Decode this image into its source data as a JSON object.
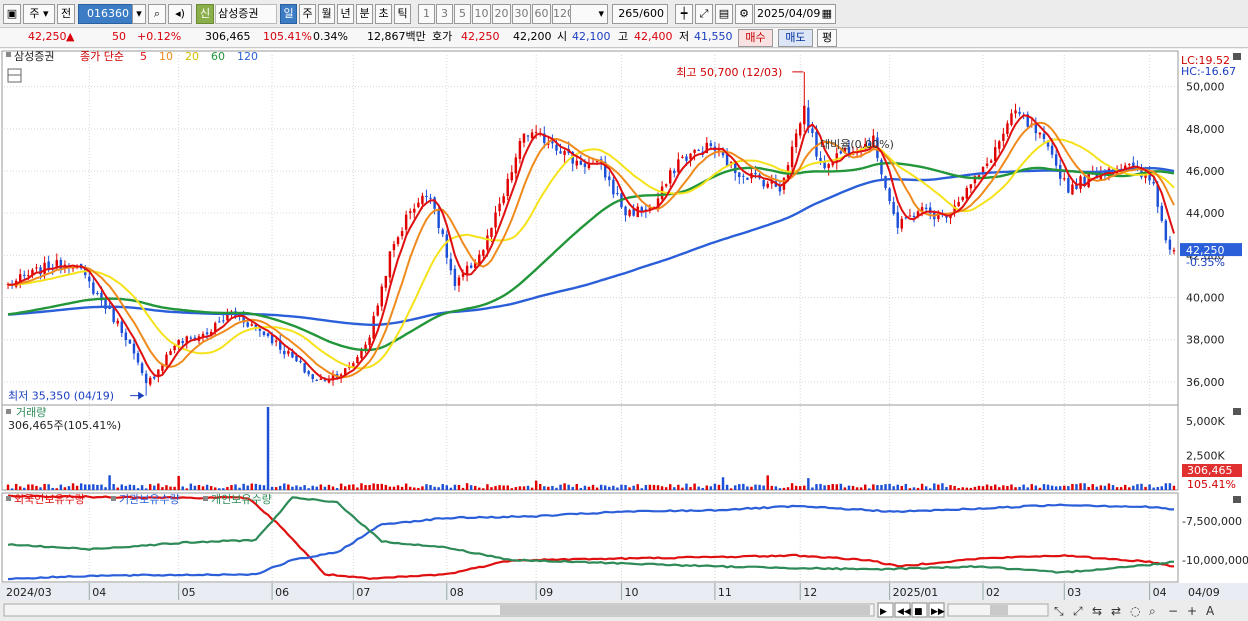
{
  "toolbar": {
    "type_label": "주",
    "jeon_label": "전",
    "stock_code": "016360",
    "sin_label": "신",
    "stock_name": "삼성증권",
    "periods": [
      "일",
      "주",
      "월",
      "년",
      "분",
      "초",
      "틱"
    ],
    "numbers": [
      "1",
      "3",
      "5",
      "10",
      "20",
      "30",
      "60",
      "120"
    ],
    "count_value": "265",
    "count_total": "/600",
    "date_value": "2025/04/09"
  },
  "quote": {
    "price": "42,250",
    "change": "50",
    "change_pct": "+0.12%",
    "volume": "306,465",
    "volume_ratio": "105.41%",
    "turnover": "0.34%",
    "amount": "12,867백만",
    "hoga_label": "호가",
    "hoga_ask": "42,250",
    "hoga_bid": "42,200",
    "open_label": "시",
    "open": "42,100",
    "high_label": "고",
    "high": "42,400",
    "low_label": "저",
    "low": "41,550",
    "buy_label": "매수",
    "sell_label": "매도",
    "avg_label": "평"
  },
  "colors": {
    "up": "#e00000",
    "down": "#1c4fd8",
    "ma5": "#e01010",
    "ma10": "#f08a1c",
    "ma20": "#f6e21a",
    "ma60": "#23963a",
    "ma120": "#2b5fd9",
    "foreign": "#e01010",
    "institution": "#2b5fd9",
    "individual": "#2e8a57"
  },
  "chart_data": [
    {
      "type": "candlestick",
      "title": "삼성증권",
      "legend": {
        "prefix": "종가 단순",
        "items": [
          {
            "label": "5",
            "color": "#e01010"
          },
          {
            "label": "10",
            "color": "#f08a1c"
          },
          {
            "label": "20",
            "color": "#f6e21a"
          },
          {
            "label": "60",
            "color": "#23963a"
          },
          {
            "label": "120",
            "color": "#2b5fd9"
          }
        ]
      },
      "y_ticks": [
        "36,000",
        "38,000",
        "40,000",
        "42,000",
        "44,000",
        "46,000",
        "48,000",
        "50,000"
      ],
      "y_range": [
        35000,
        51500
      ],
      "x_labels": [
        "2024/03",
        "04",
        "05",
        "06",
        "07",
        "08",
        "09",
        "10",
        "11",
        "12",
        "2025/01",
        "02",
        "03",
        "04",
        "04/09"
      ],
      "anchors": [
        {
          "date": "2024-03-04",
          "price": 40600
        },
        {
          "date": "2024-03-15",
          "price": 41400
        },
        {
          "date": "2024-03-26",
          "price": 41700
        },
        {
          "date": "2024-04-05",
          "price": 39600
        },
        {
          "date": "2024-04-12",
          "price": 38200
        },
        {
          "date": "2024-04-19",
          "price": 35800
        },
        {
          "date": "2024-04-30",
          "price": 37800
        },
        {
          "date": "2024-05-10",
          "price": 38300
        },
        {
          "date": "2024-05-20",
          "price": 39300
        },
        {
          "date": "2024-05-31",
          "price": 38200
        },
        {
          "date": "2024-06-07",
          "price": 37300
        },
        {
          "date": "2024-06-18",
          "price": 36000
        },
        {
          "date": "2024-06-28",
          "price": 36600
        },
        {
          "date": "2024-07-05",
          "price": 38200
        },
        {
          "date": "2024-07-12",
          "price": 42000
        },
        {
          "date": "2024-07-19",
          "price": 44200
        },
        {
          "date": "2024-07-26",
          "price": 45000
        },
        {
          "date": "2024-08-05",
          "price": 40500
        },
        {
          "date": "2024-08-14",
          "price": 42300
        },
        {
          "date": "2024-08-21",
          "price": 44800
        },
        {
          "date": "2024-08-28",
          "price": 47800
        },
        {
          "date": "2024-09-06",
          "price": 47400
        },
        {
          "date": "2024-09-13",
          "price": 46500
        },
        {
          "date": "2024-09-24",
          "price": 46200
        },
        {
          "date": "2024-10-02",
          "price": 44000
        },
        {
          "date": "2024-10-11",
          "price": 44300
        },
        {
          "date": "2024-10-21",
          "price": 46500
        },
        {
          "date": "2024-10-31",
          "price": 47200
        },
        {
          "date": "2024-11-08",
          "price": 46000
        },
        {
          "date": "2024-11-15",
          "price": 45700
        },
        {
          "date": "2024-11-25",
          "price": 45200
        },
        {
          "date": "2024-12-03",
          "price": 49000
        },
        {
          "date": "2024-12-09",
          "price": 46200
        },
        {
          "date": "2024-12-17",
          "price": 47000
        },
        {
          "date": "2024-12-26",
          "price": 47400
        },
        {
          "date": "2025-01-03",
          "price": 43300
        },
        {
          "date": "2025-01-10",
          "price": 44200
        },
        {
          "date": "2025-01-20",
          "price": 43800
        },
        {
          "date": "2025-02-03",
          "price": 46000
        },
        {
          "date": "2025-02-13",
          "price": 48800
        },
        {
          "date": "2025-02-21",
          "price": 47600
        },
        {
          "date": "2025-03-04",
          "price": 45200
        },
        {
          "date": "2025-03-14",
          "price": 46000
        },
        {
          "date": "2025-03-24",
          "price": 46300
        },
        {
          "date": "2025-04-02",
          "price": 45400
        },
        {
          "date": "2025-04-07",
          "price": 42700
        },
        {
          "date": "2025-04-09",
          "price": 42250
        }
      ],
      "annotations": {
        "high": {
          "label": "최고 50,700 (12/03)",
          "date": "2024-12-03",
          "value": 50700
        },
        "low": {
          "label": "최저 35,350 (04/19)",
          "date": "2024-04-19",
          "value": 35350
        },
        "mid": {
          "label": "대비율(0.00%)"
        },
        "lc": "LC:19.52",
        "hc": "HC:-16.67"
      },
      "current": {
        "label": "42,250",
        "pct": "-0.35%",
        "value": 42250
      }
    },
    {
      "type": "bar",
      "title": "거래량",
      "summary": "306,465주(105.41%)",
      "y_ticks": [
        "2,500K",
        "5,000K"
      ],
      "y_range": [
        0,
        6000000
      ],
      "typical_volume": 290000,
      "spike": {
        "date": "2024-05-31",
        "value": 6000000
      },
      "current": {
        "label": "306,465",
        "pct": "105.41%",
        "value": 306465
      }
    },
    {
      "type": "line",
      "legend": [
        {
          "label": "외국인보유수량",
          "color": "#e01010"
        },
        {
          "label": "기관보유수량",
          "color": "#2b5fd9"
        },
        {
          "label": "개인보유수량",
          "color": "#2e8a57"
        }
      ],
      "y_ticks": [
        "-7,500,000",
        "-10,000,000"
      ],
      "series": [
        {
          "name": "외국인보유수량",
          "values": [
            {
              "date": "2024-03-04",
              "v": -5900000
            },
            {
              "date": "2024-05-01",
              "v": -6000000
            },
            {
              "date": "2024-05-25",
              "v": -6000000
            },
            {
              "date": "2024-06-05",
              "v": -7800000
            },
            {
              "date": "2024-06-20",
              "v": -10900000
            },
            {
              "date": "2024-07-05",
              "v": -11200000
            },
            {
              "date": "2024-08-01",
              "v": -10900000
            },
            {
              "date": "2024-08-25",
              "v": -10000000
            },
            {
              "date": "2024-10-01",
              "v": -9900000
            },
            {
              "date": "2024-11-01",
              "v": -9800000
            },
            {
              "date": "2024-12-01",
              "v": -9700000
            },
            {
              "date": "2024-12-25",
              "v": -10000000
            },
            {
              "date": "2025-01-05",
              "v": -10400000
            },
            {
              "date": "2025-02-01",
              "v": -9900000
            },
            {
              "date": "2025-03-01",
              "v": -9700000
            },
            {
              "date": "2025-04-01",
              "v": -10100000
            },
            {
              "date": "2025-04-09",
              "v": -10400000
            }
          ]
        },
        {
          "name": "기관보유수량",
          "values": [
            {
              "date": "2024-03-04",
              "v": -11200000
            },
            {
              "date": "2024-04-01",
              "v": -11000000
            },
            {
              "date": "2024-05-01",
              "v": -10950000
            },
            {
              "date": "2024-05-28",
              "v": -10900000
            },
            {
              "date": "2024-06-10",
              "v": -10000000
            },
            {
              "date": "2024-06-25",
              "v": -9500000
            },
            {
              "date": "2024-07-10",
              "v": -7700000
            },
            {
              "date": "2024-08-01",
              "v": -7300000
            },
            {
              "date": "2024-09-01",
              "v": -7200000
            },
            {
              "date": "2024-10-01",
              "v": -6900000
            },
            {
              "date": "2024-11-01",
              "v": -6800000
            },
            {
              "date": "2024-12-01",
              "v": -6550000
            },
            {
              "date": "2025-01-05",
              "v": -6900000
            },
            {
              "date": "2025-02-01",
              "v": -6700000
            },
            {
              "date": "2025-03-01",
              "v": -6450000
            },
            {
              "date": "2025-04-01",
              "v": -6600000
            },
            {
              "date": "2025-04-09",
              "v": -6750000
            }
          ]
        },
        {
          "name": "개인보유수량",
          "values": [
            {
              "date": "2024-03-04",
              "v": -9000000
            },
            {
              "date": "2024-04-01",
              "v": -9300000
            },
            {
              "date": "2024-05-01",
              "v": -8900000
            },
            {
              "date": "2024-05-28",
              "v": -8700000
            },
            {
              "date": "2024-06-10",
              "v": -6000000
            },
            {
              "date": "2024-06-25",
              "v": -6300000
            },
            {
              "date": "2024-07-10",
              "v": -8800000
            },
            {
              "date": "2024-08-01",
              "v": -9200000
            },
            {
              "date": "2024-08-25",
              "v": -10000000
            },
            {
              "date": "2024-10-01",
              "v": -10200000
            },
            {
              "date": "2024-11-01",
              "v": -10400000
            },
            {
              "date": "2024-12-01",
              "v": -10500000
            },
            {
              "date": "2024-12-25",
              "v": -10600000
            },
            {
              "date": "2025-02-01",
              "v": -10400000
            },
            {
              "date": "2025-03-01",
              "v": -10800000
            },
            {
              "date": "2025-04-01",
              "v": -10300000
            },
            {
              "date": "2025-04-09",
              "v": -10100000
            }
          ]
        }
      ]
    }
  ]
}
